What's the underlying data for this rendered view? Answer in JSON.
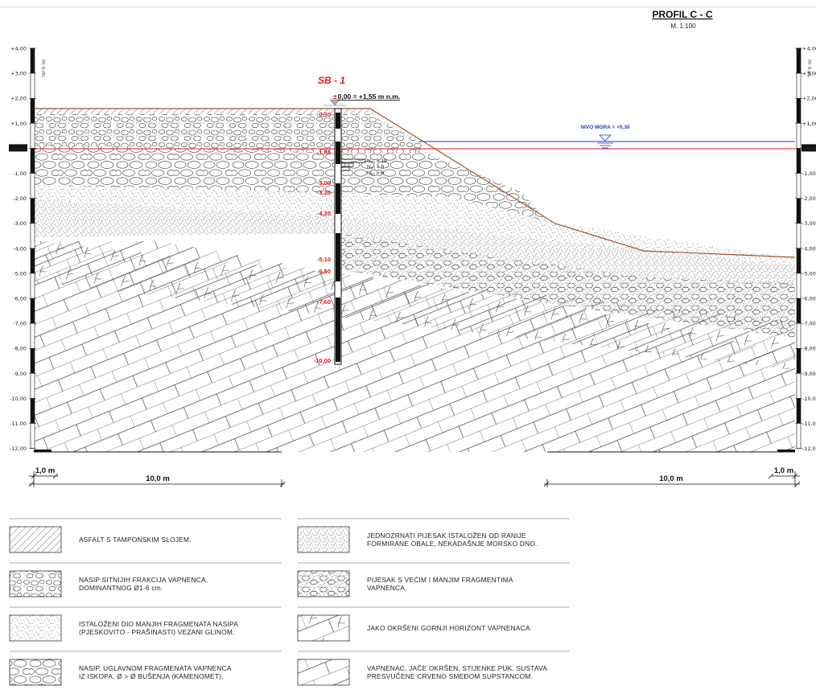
{
  "header": {
    "title": "PROFIL  C - C",
    "scale": "M. 1:100"
  },
  "borehole": {
    "id": "SB - 1",
    "datum_prefix": "±",
    "datum": "0,00 = +1,55 m n.m.",
    "depth_labels": [
      "-0,30",
      "-1,80",
      "-3,00",
      "-3,20",
      "-4,20",
      "-5,10",
      "-6,50",
      "-7,60",
      "-10,00"
    ],
    "npt": [
      "N₆₀ = 19",
      "N₆₀ = 9",
      "N₆₀ = 6"
    ]
  },
  "sea_level": {
    "label": "NIVO MORA = +0,30"
  },
  "ruler_units": "m n.m.",
  "elevation_scale": [
    "+4,00",
    "+3,00",
    "+2,00",
    "+1,00",
    "±0,00",
    "-1,00",
    "-2,00",
    "-3,00",
    "-4,00",
    "-5,00",
    "-6,00",
    "-7,00",
    "-8,00",
    "-9,00",
    "-10,00",
    "-11,00",
    "-12,00"
  ],
  "dimensions": {
    "small_left": "1,0 m",
    "big_left": "10,0 m",
    "big_right": "10,0 m",
    "small_right": "1,0 m"
  },
  "legend": [
    {
      "pattern": "hatch",
      "lines": [
        "ASFALT S TAMPONSKIM SLOJEM."
      ]
    },
    {
      "pattern": "sand_fine",
      "lines": [
        "JEDNOZRNATI PIJESAK ISTALOŽEN OD RANIJE",
        "FORMIRANE OBALE, NEKADAŠNJE MORSKO DNO."
      ]
    },
    {
      "pattern": "pebbles",
      "lines": [
        "NASIP SITNIJIH FRAKCIJA VAPNENCA,",
        "DOMINANTNOG Ø1-6 cm."
      ]
    },
    {
      "pattern": "sand_frag",
      "lines": [
        "PIJESAK S VEĆIM I MANJIM FRAGMENTIMA",
        "VAPNENCA."
      ]
    },
    {
      "pattern": "dots",
      "lines": [
        "ISTALOŽENI DIO MANJIH FRAGMENATA NASIPA",
        "(PJESKOVITO - PRAŠINASTI) VEZANI GLINOM."
      ]
    },
    {
      "pattern": "karst",
      "lines": [
        "JAKO OKRŠENI GORNJI HORIZONT VAPNENACA."
      ]
    },
    {
      "pattern": "cobbles",
      "lines": [
        "NASIP, UGLAVNOM FRAGMENATA VAPNENCA",
        "IZ ISKOPA, Ø > Ø BUŠENJA (KAMENOMET)."
      ]
    },
    {
      "pattern": "bricks",
      "lines": [
        "VAPNENAC, JAČE OKRŠEN, STIJENKE PUK. SUSTAVA",
        "PRESVUČENE CRVENO SMEĐOM SUPSTANCOM."
      ]
    }
  ],
  "colors": {
    "red": "#e01b1b",
    "blue": "#1e3cc8",
    "ground_line": "#a0522d",
    "ink": "#111111"
  }
}
